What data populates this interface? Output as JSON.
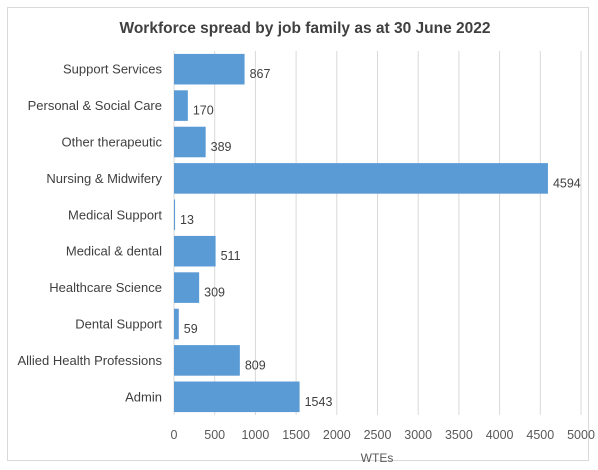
{
  "chart_data": {
    "type": "bar",
    "orientation": "horizontal",
    "title": "Workforce spread by job family as at 30 June 2022",
    "xlabel": "WTEs",
    "ylabel": "",
    "xlim": [
      0,
      5000
    ],
    "xticks": [
      0,
      500,
      1000,
      1500,
      2000,
      2500,
      3000,
      3500,
      4000,
      4500,
      5000
    ],
    "gridlines": "vertical",
    "legend": "none",
    "bar_color": "#5b9bd5",
    "categories": [
      "Support Services",
      "Personal & Social Care",
      "Other therapeutic",
      "Nursing & Midwifery",
      "Medical Support",
      "Medical & dental",
      "Healthcare Science",
      "Dental Support",
      "Allied Health Professions",
      "Admin"
    ],
    "values": [
      867,
      170,
      389,
      4594,
      13,
      511,
      309,
      59,
      809,
      1543
    ]
  }
}
